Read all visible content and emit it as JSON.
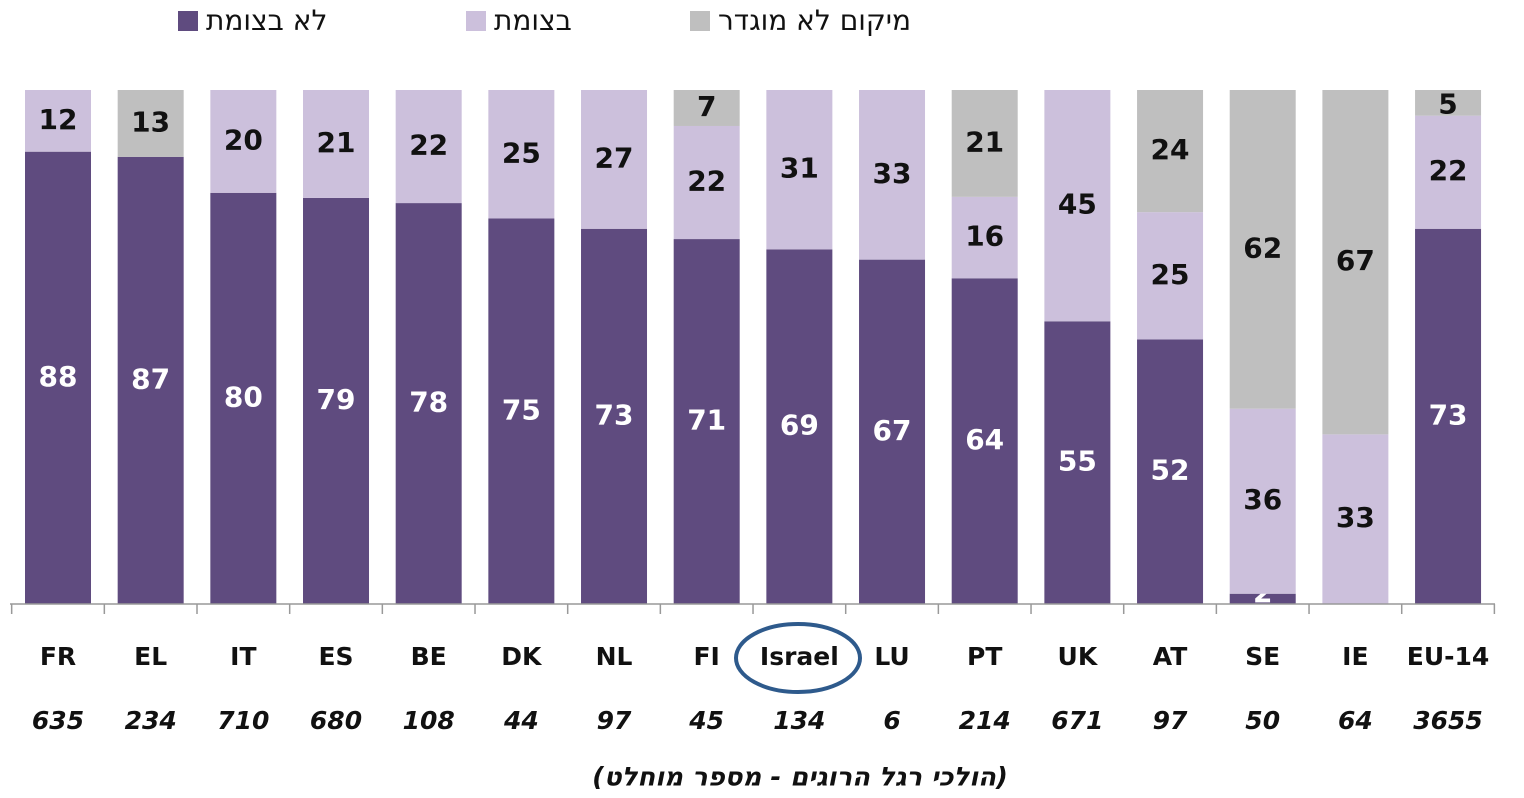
{
  "chart_data": {
    "type": "stacked_bar_100",
    "categories": [
      "FR",
      "EL",
      "IT",
      "ES",
      "BE",
      "DK",
      "NL",
      "FI",
      "Israel",
      "LU",
      "PT",
      "UK",
      "AT",
      "SE",
      "IE",
      "EU-14"
    ],
    "counts": [
      635,
      234,
      710,
      680,
      108,
      44,
      97,
      45,
      134,
      6,
      214,
      671,
      97,
      50,
      64,
      3655
    ],
    "x_label": "(הולכי רגל הרוגים - מספר מוחלט)",
    "series": [
      {
        "name": "לא בצומת",
        "color": "#5f4b7f",
        "label_color": "#ffffff",
        "values": [
          88,
          87,
          80,
          79,
          78,
          75,
          73,
          71,
          69,
          67,
          64,
          55,
          52,
          2,
          null,
          73
        ]
      },
      {
        "name": "בצומת",
        "color": "#ccc0dc",
        "label_color": "#111111",
        "values": [
          12,
          null,
          20,
          21,
          22,
          25,
          27,
          22,
          31,
          33,
          16,
          45,
          25,
          36,
          33,
          22
        ]
      },
      {
        "name": "מיקום לא מוגדר",
        "color": "#bfbfbf",
        "label_color": "#111111",
        "values": [
          null,
          13,
          null,
          null,
          null,
          null,
          null,
          7,
          null,
          null,
          21,
          null,
          24,
          62,
          67,
          5
        ]
      }
    ]
  }
}
